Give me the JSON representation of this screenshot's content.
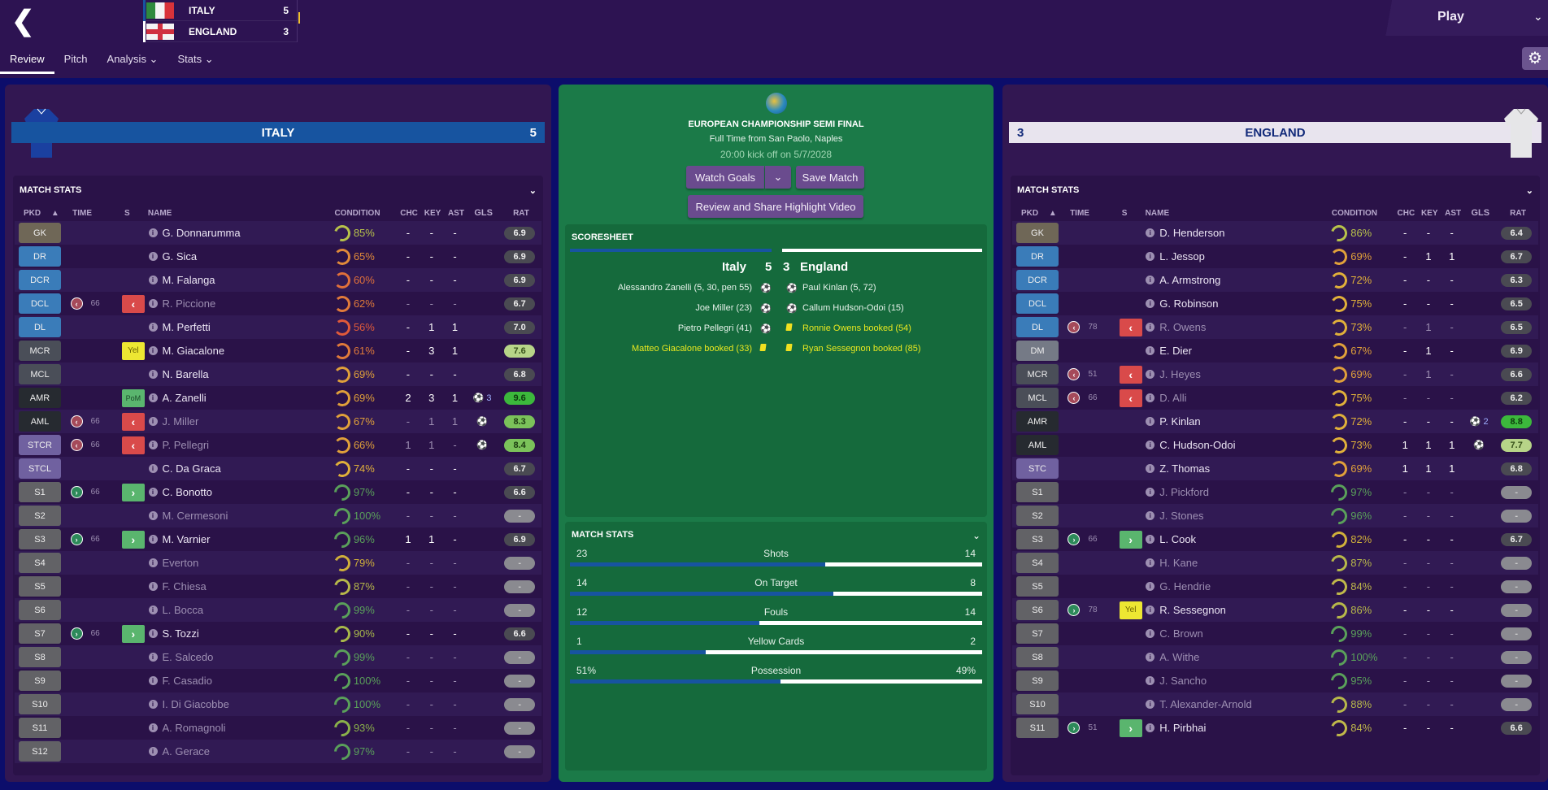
{
  "header": {
    "back_icon": "chevron-left-icon",
    "scoreboard": [
      {
        "team": "ITALY",
        "score": "5",
        "flag": "italy-flag",
        "stripe": "#1754a0"
      },
      {
        "team": "ENGLAND",
        "score": "3",
        "flag": "england-flag",
        "stripe": "#ffffff"
      }
    ],
    "play_label": "Play",
    "tabs": [
      {
        "label": "Review",
        "active": true
      },
      {
        "label": "Pitch"
      },
      {
        "label": "Analysis ⌄"
      },
      {
        "label": "Stats ⌄"
      }
    ],
    "settings_icon": "gear-icon"
  },
  "columns": {
    "pkd": "PKD",
    "sort": "▲",
    "time": "TIME",
    "s": "S",
    "name": "NAME",
    "condition": "CONDITION",
    "chc": "CHC",
    "key": "KEY",
    "ast": "AST",
    "gls": "GLS",
    "rat": "RAT"
  },
  "home": {
    "team": "ITALY",
    "score": "5",
    "section_title": "MATCH STATS",
    "players": [
      {
        "pos": "GK",
        "cls": "p-gk",
        "name": "G. Donnarumma",
        "cond": "85%",
        "cc": "#b7c24a",
        "chc": "-",
        "key": "-",
        "ast": "-",
        "gls": "",
        "rat": "6.9",
        "rc": "r-n"
      },
      {
        "pos": "DR",
        "cls": "p-def",
        "name": "G. Sica",
        "cond": "65%",
        "cc": "#e08a3a",
        "chc": "-",
        "key": "-",
        "ast": "-",
        "gls": "",
        "rat": "6.9",
        "rc": "r-n"
      },
      {
        "pos": "DCR",
        "cls": "p-def",
        "name": "M. Falanga",
        "cond": "60%",
        "cc": "#e0703a",
        "chc": "-",
        "key": "-",
        "ast": "-",
        "gls": "",
        "rat": "6.9",
        "rc": "r-n"
      },
      {
        "pos": "DCL",
        "cls": "p-def",
        "sub": "off",
        "time": "66",
        "badge": "off",
        "name": "R. Piccione",
        "dim": true,
        "cond": "62%",
        "cc": "#e07a3a",
        "chc": "-",
        "key": "-",
        "ast": "-",
        "gls": "",
        "rat": "6.7",
        "rc": "r-n"
      },
      {
        "pos": "DL",
        "cls": "p-def",
        "name": "M. Perfetti",
        "cond": "56%",
        "cc": "#e05a3a",
        "chc": "-",
        "key": "1",
        "ast": "1",
        "gls": "",
        "rat": "7.0",
        "rc": "r-n"
      },
      {
        "pos": "MCR",
        "cls": "p-mid",
        "badge": "yel",
        "badge_label": "Yel",
        "name": "M. Giacalone",
        "cond": "61%",
        "cc": "#e07a3a",
        "chc": "-",
        "key": "3",
        "ast": "1",
        "gls": "",
        "rat": "7.6",
        "rc": "r-lg"
      },
      {
        "pos": "MCL",
        "cls": "p-mid",
        "name": "N. Barella",
        "cond": "69%",
        "cc": "#e0a03a",
        "chc": "-",
        "key": "-",
        "ast": "-",
        "gls": "",
        "rat": "6.8",
        "rc": "r-n"
      },
      {
        "pos": "AMR",
        "cls": "p-am",
        "badge": "pom",
        "badge_label": "PoM",
        "name": "A. Zanelli",
        "cond": "69%",
        "cc": "#e0a03a",
        "chc": "2",
        "key": "3",
        "ast": "1",
        "gls": "⚽ 3",
        "rat": "9.6",
        "rc": "r-gg"
      },
      {
        "pos": "AML",
        "cls": "p-am",
        "sub": "off",
        "time": "66",
        "badge": "off",
        "name": "J. Miller",
        "dim": true,
        "cond": "67%",
        "cc": "#e0a03a",
        "chc": "-",
        "key": "1",
        "ast": "1",
        "gls": "⚽",
        "rat": "8.3",
        "rc": "r-g"
      },
      {
        "pos": "STCR",
        "cls": "p-st",
        "sub": "off",
        "time": "66",
        "badge": "off",
        "name": "P. Pellegri",
        "dim": true,
        "cond": "66%",
        "cc": "#e0a03a",
        "chc": "1",
        "key": "1",
        "ast": "-",
        "gls": "⚽",
        "rat": "8.4",
        "rc": "r-g"
      },
      {
        "pos": "STCL",
        "cls": "p-st",
        "name": "C. Da Graca",
        "cond": "74%",
        "cc": "#e0b03a",
        "chc": "-",
        "key": "-",
        "ast": "-",
        "gls": "",
        "rat": "6.7",
        "rc": "r-n"
      },
      {
        "pos": "S1",
        "cls": "p-sub",
        "sub": "on",
        "time": "66",
        "badge": "on",
        "name": "C. Bonotto",
        "cond": "97%",
        "cc": "#5aa05a",
        "chc": "-",
        "key": "-",
        "ast": "-",
        "gls": "",
        "rat": "6.6",
        "rc": "r-n"
      },
      {
        "pos": "S2",
        "cls": "p-sub",
        "name": "M. Cermesoni",
        "dim": true,
        "cond": "100%",
        "cc": "#5aa05a",
        "chc": "-",
        "key": "-",
        "ast": "-",
        "gls": "",
        "rat": "-",
        "rc": "r-none"
      },
      {
        "pos": "S3",
        "cls": "p-sub",
        "sub": "on",
        "time": "66",
        "badge": "on",
        "name": "M. Varnier",
        "cond": "96%",
        "cc": "#5aa05a",
        "chc": "1",
        "key": "1",
        "ast": "-",
        "gls": "",
        "rat": "6.9",
        "rc": "r-n"
      },
      {
        "pos": "S4",
        "cls": "p-sub",
        "name": "Everton",
        "dim": true,
        "cond": "79%",
        "cc": "#d0b03a",
        "chc": "-",
        "key": "-",
        "ast": "-",
        "gls": "",
        "rat": "-",
        "rc": "r-none"
      },
      {
        "pos": "S5",
        "cls": "p-sub",
        "name": "F. Chiesa",
        "dim": true,
        "cond": "87%",
        "cc": "#b7b84a",
        "chc": "-",
        "key": "-",
        "ast": "-",
        "gls": "",
        "rat": "-",
        "rc": "r-none"
      },
      {
        "pos": "S6",
        "cls": "p-sub",
        "name": "L. Bocca",
        "dim": true,
        "cond": "99%",
        "cc": "#5aa05a",
        "chc": "-",
        "key": "-",
        "ast": "-",
        "gls": "",
        "rat": "-",
        "rc": "r-none"
      },
      {
        "pos": "S7",
        "cls": "p-sub",
        "sub": "on",
        "time": "66",
        "badge": "on",
        "name": "S. Tozzi",
        "cond": "90%",
        "cc": "#a8b84a",
        "chc": "-",
        "key": "-",
        "ast": "-",
        "gls": "",
        "rat": "6.6",
        "rc": "r-n"
      },
      {
        "pos": "S8",
        "cls": "p-sub",
        "name": "E. Salcedo",
        "dim": true,
        "cond": "99%",
        "cc": "#5aa05a",
        "chc": "-",
        "key": "-",
        "ast": "-",
        "gls": "",
        "rat": "-",
        "rc": "r-none"
      },
      {
        "pos": "S9",
        "cls": "p-sub",
        "name": "F. Casadio",
        "dim": true,
        "cond": "100%",
        "cc": "#5aa05a",
        "chc": "-",
        "key": "-",
        "ast": "-",
        "gls": "",
        "rat": "-",
        "rc": "r-none"
      },
      {
        "pos": "S10",
        "cls": "p-sub",
        "name": "I. Di Giacobbe",
        "dim": true,
        "cond": "100%",
        "cc": "#5aa05a",
        "chc": "-",
        "key": "-",
        "ast": "-",
        "gls": "",
        "rat": "-",
        "rc": "r-none"
      },
      {
        "pos": "S11",
        "cls": "p-sub",
        "name": "A. Romagnoli",
        "dim": true,
        "cond": "93%",
        "cc": "#8ab04a",
        "chc": "-",
        "key": "-",
        "ast": "-",
        "gls": "",
        "rat": "-",
        "rc": "r-none"
      },
      {
        "pos": "S12",
        "cls": "p-sub",
        "name": "A. Gerace",
        "dim": true,
        "cond": "97%",
        "cc": "#5aa05a",
        "chc": "-",
        "key": "-",
        "ast": "-",
        "gls": "",
        "rat": "-",
        "rc": "r-none"
      }
    ]
  },
  "away": {
    "team": "ENGLAND",
    "score": "3",
    "section_title": "MATCH STATS",
    "players": [
      {
        "pos": "GK",
        "cls": "p-gk",
        "name": "D. Henderson",
        "cond": "86%",
        "cc": "#b7c24a",
        "chc": "-",
        "key": "-",
        "ast": "-",
        "gls": "",
        "rat": "6.4",
        "rc": "r-n"
      },
      {
        "pos": "DR",
        "cls": "p-def",
        "name": "L. Jessop",
        "cond": "69%",
        "cc": "#e0a03a",
        "chc": "-",
        "key": "1",
        "ast": "1",
        "gls": "",
        "rat": "6.7",
        "rc": "r-n"
      },
      {
        "pos": "DCR",
        "cls": "p-def",
        "name": "A. Armstrong",
        "cond": "72%",
        "cc": "#e0b03a",
        "chc": "-",
        "key": "-",
        "ast": "-",
        "gls": "",
        "rat": "6.3",
        "rc": "r-n"
      },
      {
        "pos": "DCL",
        "cls": "p-def",
        "name": "G. Robinson",
        "cond": "75%",
        "cc": "#e0b03a",
        "chc": "-",
        "key": "-",
        "ast": "-",
        "gls": "",
        "rat": "6.5",
        "rc": "r-n"
      },
      {
        "pos": "DL",
        "cls": "p-def",
        "sub": "off",
        "time": "78",
        "badge": "off",
        "name": "R. Owens",
        "dim": true,
        "cond": "73%",
        "cc": "#e0b03a",
        "chc": "-",
        "key": "1",
        "ast": "-",
        "gls": "",
        "rat": "6.5",
        "rc": "r-n"
      },
      {
        "pos": "DM",
        "cls": "p-dm",
        "name": "E. Dier",
        "cond": "67%",
        "cc": "#e0a03a",
        "chc": "-",
        "key": "1",
        "ast": "-",
        "gls": "",
        "rat": "6.9",
        "rc": "r-n"
      },
      {
        "pos": "MCR",
        "cls": "p-mid",
        "sub": "off",
        "time": "51",
        "badge": "off",
        "name": "J. Heyes",
        "dim": true,
        "cond": "69%",
        "cc": "#e0a03a",
        "chc": "-",
        "key": "1",
        "ast": "-",
        "gls": "",
        "rat": "6.6",
        "rc": "r-n"
      },
      {
        "pos": "MCL",
        "cls": "p-mid",
        "sub": "off",
        "time": "66",
        "badge": "off",
        "name": "D. Alli",
        "dim": true,
        "cond": "75%",
        "cc": "#e0b03a",
        "chc": "-",
        "key": "-",
        "ast": "-",
        "gls": "",
        "rat": "6.2",
        "rc": "r-n"
      },
      {
        "pos": "AMR",
        "cls": "p-am",
        "name": "P. Kinlan",
        "cond": "72%",
        "cc": "#e0b03a",
        "chc": "-",
        "key": "-",
        "ast": "-",
        "gls": "⚽ 2",
        "rat": "8.8",
        "rc": "r-gg"
      },
      {
        "pos": "AML",
        "cls": "p-am",
        "name": "C. Hudson-Odoi",
        "cond": "73%",
        "cc": "#e0b03a",
        "chc": "1",
        "key": "1",
        "ast": "1",
        "gls": "⚽",
        "rat": "7.7",
        "rc": "r-lg"
      },
      {
        "pos": "STC",
        "cls": "p-st",
        "name": "Z. Thomas",
        "cond": "69%",
        "cc": "#e0a03a",
        "chc": "1",
        "key": "1",
        "ast": "1",
        "gls": "",
        "rat": "6.8",
        "rc": "r-n"
      },
      {
        "pos": "S1",
        "cls": "p-sub",
        "name": "J. Pickford",
        "dim": true,
        "cond": "97%",
        "cc": "#5aa05a",
        "chc": "-",
        "key": "-",
        "ast": "-",
        "gls": "",
        "rat": "-",
        "rc": "r-none"
      },
      {
        "pos": "S2",
        "cls": "p-sub",
        "name": "J. Stones",
        "dim": true,
        "cond": "96%",
        "cc": "#5aa05a",
        "chc": "-",
        "key": "-",
        "ast": "-",
        "gls": "",
        "rat": "-",
        "rc": "r-none"
      },
      {
        "pos": "S3",
        "cls": "p-sub",
        "sub": "on",
        "time": "66",
        "badge": "on",
        "name": "L. Cook",
        "cond": "82%",
        "cc": "#d0b03a",
        "chc": "-",
        "key": "-",
        "ast": "-",
        "gls": "",
        "rat": "6.7",
        "rc": "r-n"
      },
      {
        "pos": "S4",
        "cls": "p-sub",
        "name": "H. Kane",
        "dim": true,
        "cond": "87%",
        "cc": "#b7b84a",
        "chc": "-",
        "key": "-",
        "ast": "-",
        "gls": "",
        "rat": "-",
        "rc": "r-none"
      },
      {
        "pos": "S5",
        "cls": "p-sub",
        "name": "G. Hendrie",
        "dim": true,
        "cond": "84%",
        "cc": "#c0b84a",
        "chc": "-",
        "key": "-",
        "ast": "-",
        "gls": "",
        "rat": "-",
        "rc": "r-none"
      },
      {
        "pos": "S6",
        "cls": "p-sub",
        "sub": "on",
        "time": "78",
        "badge": "yel",
        "badge_label": "Yel",
        "name": "R. Sessegnon",
        "cond": "86%",
        "cc": "#b7b84a",
        "chc": "-",
        "key": "-",
        "ast": "-",
        "gls": "",
        "rat": "-",
        "rc": "r-none"
      },
      {
        "pos": "S7",
        "cls": "p-sub",
        "name": "C. Brown",
        "dim": true,
        "cond": "99%",
        "cc": "#5aa05a",
        "chc": "-",
        "key": "-",
        "ast": "-",
        "gls": "",
        "rat": "-",
        "rc": "r-none"
      },
      {
        "pos": "S8",
        "cls": "p-sub",
        "name": "A. Withe",
        "dim": true,
        "cond": "100%",
        "cc": "#5aa05a",
        "chc": "-",
        "key": "-",
        "ast": "-",
        "gls": "",
        "rat": "-",
        "rc": "r-none"
      },
      {
        "pos": "S9",
        "cls": "p-sub",
        "name": "J. Sancho",
        "dim": true,
        "cond": "95%",
        "cc": "#5aa05a",
        "chc": "-",
        "key": "-",
        "ast": "-",
        "gls": "",
        "rat": "-",
        "rc": "r-none"
      },
      {
        "pos": "S10",
        "cls": "p-sub",
        "name": "T. Alexander-Arnold",
        "dim": true,
        "cond": "88%",
        "cc": "#b7b84a",
        "chc": "-",
        "key": "-",
        "ast": "-",
        "gls": "",
        "rat": "-",
        "rc": "r-none"
      },
      {
        "pos": "S11",
        "cls": "p-sub",
        "sub": "on",
        "time": "51",
        "badge": "on",
        "name": "H. Pirbhai",
        "cond": "84%",
        "cc": "#c0b84a",
        "chc": "-",
        "key": "-",
        "ast": "-",
        "gls": "",
        "rat": "6.6",
        "rc": "r-n"
      }
    ]
  },
  "center": {
    "competition": "EUROPEAN CHAMPIONSHIP SEMI FINAL",
    "venue": "Full Time from San Paolo, Naples",
    "kickoff": "20:00 kick off on 5/7/2028",
    "watch_goals": "Watch Goals",
    "save_match": "Save Match",
    "highlight": "Review and Share Highlight Video",
    "scoresheet": {
      "title": "SCORESHEET",
      "home_team": "Italy",
      "home_score": "5",
      "away_team": "England",
      "away_score": "3",
      "home_events": [
        {
          "text": "Alessandro Zanelli (5, 30, pen 55)",
          "type": "goal"
        },
        {
          "text": "Joe Miller (23)",
          "type": "goal"
        },
        {
          "text": "Pietro Pellegri (41)",
          "type": "goal"
        },
        {
          "text": "Matteo Giacalone booked (33)",
          "type": "yellow"
        }
      ],
      "away_events": [
        {
          "text": "Paul Kinlan (5, 72)",
          "type": "goal"
        },
        {
          "text": "Callum Hudson-Odoi (15)",
          "type": "goal"
        },
        {
          "text": "Ronnie Owens booked (54)",
          "type": "yellow"
        },
        {
          "text": "Ryan Sessegnon booked (85)",
          "type": "yellow"
        }
      ]
    },
    "match_stats": {
      "title": "MATCH STATS",
      "rows": [
        {
          "label": "Shots",
          "home": "23",
          "away": "14",
          "pct": 62
        },
        {
          "label": "On Target",
          "home": "14",
          "away": "8",
          "pct": 64
        },
        {
          "label": "Fouls",
          "home": "12",
          "away": "14",
          "pct": 46
        },
        {
          "label": "Yellow Cards",
          "home": "1",
          "away": "2",
          "pct": 33
        },
        {
          "label": "Possession",
          "home": "51%",
          "away": "49%",
          "pct": 51
        }
      ]
    }
  }
}
